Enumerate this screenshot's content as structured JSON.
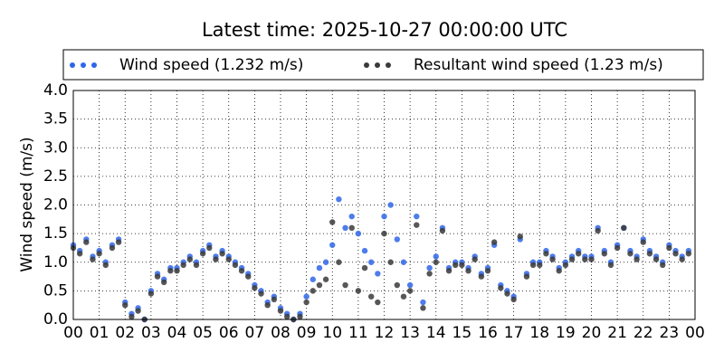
{
  "chart_data": {
    "type": "scatter",
    "title": "Latest time: 2025-10-27 00:00:00 UTC",
    "y_label": "Wind speed (m/s)",
    "x": [
      0,
      0.25,
      0.5,
      0.75,
      1,
      1.25,
      1.5,
      1.75,
      2,
      2.25,
      2.5,
      2.75,
      3,
      3.25,
      3.5,
      3.75,
      4,
      4.25,
      4.5,
      4.75,
      5,
      5.25,
      5.5,
      5.75,
      6,
      6.25,
      6.5,
      6.75,
      7,
      7.25,
      7.5,
      7.75,
      8,
      8.25,
      8.5,
      8.75,
      9,
      9.25,
      9.5,
      9.75,
      10,
      10.25,
      10.5,
      10.75,
      11,
      11.25,
      11.5,
      11.75,
      12,
      12.25,
      12.5,
      12.75,
      13,
      13.25,
      13.5,
      13.75,
      14,
      14.25,
      14.5,
      14.75,
      15,
      15.25,
      15.5,
      15.75,
      16,
      16.25,
      16.5,
      16.75,
      17,
      17.25,
      17.5,
      17.75,
      18,
      18.25,
      18.5,
      18.75,
      19,
      19.25,
      19.5,
      19.75,
      20,
      20.25,
      20.5,
      20.75,
      21,
      21.25,
      21.5,
      21.75,
      22,
      22.25,
      22.5,
      22.75,
      23,
      23.25,
      23.5,
      23.75
    ],
    "series": [
      {
        "name": "Wind speed (1.232 m/s)",
        "color": "#2f66e8",
        "values": [
          1.3,
          1.2,
          1.4,
          1.1,
          1.2,
          1.0,
          1.3,
          1.4,
          0.3,
          0.1,
          0.2,
          0.0,
          0.5,
          0.8,
          0.7,
          0.9,
          0.9,
          1.0,
          1.1,
          1.0,
          1.2,
          1.3,
          1.1,
          1.2,
          1.1,
          1.0,
          0.9,
          0.8,
          0.6,
          0.5,
          0.3,
          0.4,
          0.2,
          0.1,
          0.0,
          0.1,
          0.4,
          0.7,
          0.9,
          1.0,
          1.3,
          2.1,
          1.6,
          1.8,
          1.5,
          1.2,
          1.0,
          0.8,
          1.8,
          2.0,
          1.4,
          1.0,
          0.6,
          1.8,
          0.3,
          0.9,
          1.1,
          1.6,
          0.9,
          1.0,
          1.0,
          0.9,
          1.1,
          0.8,
          0.9,
          1.3,
          0.6,
          0.5,
          0.4,
          1.4,
          0.8,
          1.0,
          1.0,
          1.2,
          1.1,
          0.9,
          1.0,
          1.1,
          1.2,
          1.1,
          1.1,
          1.6,
          1.2,
          1.0,
          1.3,
          1.6,
          1.2,
          1.1,
          1.4,
          1.2,
          1.1,
          1.0,
          1.3,
          1.2,
          1.1,
          1.2
        ]
      },
      {
        "name": "Resultant wind speed (1.23 m/s)",
        "color": "#3a3a3a",
        "values": [
          1.25,
          1.15,
          1.35,
          1.05,
          1.15,
          0.95,
          1.25,
          1.35,
          0.25,
          0.05,
          0.15,
          0.0,
          0.45,
          0.75,
          0.65,
          0.85,
          0.85,
          0.95,
          1.05,
          0.95,
          1.15,
          1.25,
          1.05,
          1.15,
          1.05,
          0.95,
          0.85,
          0.75,
          0.55,
          0.45,
          0.25,
          0.35,
          0.15,
          0.05,
          0.0,
          0.05,
          0.3,
          0.5,
          0.6,
          0.7,
          1.7,
          1.0,
          0.6,
          1.6,
          0.5,
          0.9,
          0.4,
          0.3,
          1.5,
          1.0,
          0.6,
          0.4,
          0.5,
          1.65,
          0.2,
          0.8,
          1.0,
          1.55,
          0.85,
          0.95,
          0.95,
          0.85,
          1.05,
          0.75,
          0.85,
          1.35,
          0.55,
          0.45,
          0.35,
          1.45,
          0.75,
          0.95,
          0.95,
          1.15,
          1.05,
          0.85,
          0.95,
          1.05,
          1.15,
          1.05,
          1.05,
          1.55,
          1.15,
          0.95,
          1.25,
          1.6,
          1.15,
          1.05,
          1.35,
          1.15,
          1.05,
          0.95,
          1.25,
          1.15,
          1.05,
          1.15
        ]
      }
    ],
    "xlim": [
      0,
      24
    ],
    "xticks": [
      {
        "value": 0,
        "label": "00"
      },
      {
        "value": 1,
        "label": "01"
      },
      {
        "value": 2,
        "label": "02"
      },
      {
        "value": 3,
        "label": "03"
      },
      {
        "value": 4,
        "label": "04"
      },
      {
        "value": 5,
        "label": "05"
      },
      {
        "value": 6,
        "label": "06"
      },
      {
        "value": 7,
        "label": "07"
      },
      {
        "value": 8,
        "label": "08"
      },
      {
        "value": 9,
        "label": "09"
      },
      {
        "value": 10,
        "label": "10"
      },
      {
        "value": 11,
        "label": "11"
      },
      {
        "value": 12,
        "label": "12"
      },
      {
        "value": 13,
        "label": "13"
      },
      {
        "value": 14,
        "label": "14"
      },
      {
        "value": 15,
        "label": "15"
      },
      {
        "value": 16,
        "label": "16"
      },
      {
        "value": 17,
        "label": "17"
      },
      {
        "value": 18,
        "label": "18"
      },
      {
        "value": 19,
        "label": "19"
      },
      {
        "value": 20,
        "label": "20"
      },
      {
        "value": 21,
        "label": "21"
      },
      {
        "value": 22,
        "label": "22"
      },
      {
        "value": 23,
        "label": "23"
      },
      {
        "value": 24,
        "label": "00"
      }
    ],
    "ylim": [
      0,
      4
    ],
    "yticks": [
      {
        "value": 0,
        "label": "0.0"
      },
      0.5,
      {
        "value": 1,
        "label": "1.0"
      },
      1.5,
      {
        "value": 2,
        "label": "2.0"
      },
      2.5,
      {
        "value": 3,
        "label": "3.0"
      },
      3.5,
      {
        "value": 4,
        "label": "4.0"
      }
    ],
    "grid": true
  }
}
